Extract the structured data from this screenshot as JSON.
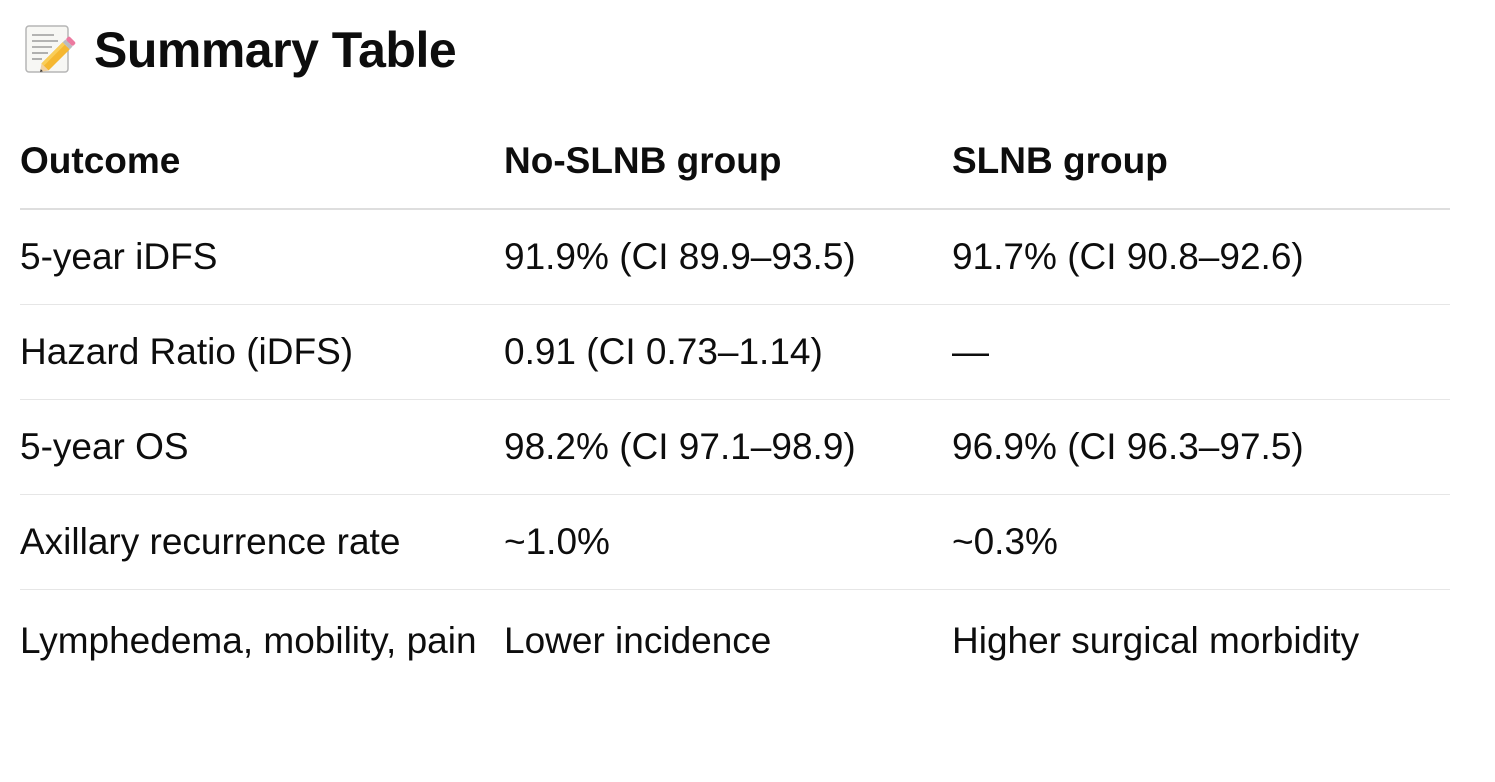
{
  "heading": {
    "icon": "memo-pencil-icon",
    "title": "Summary Table"
  },
  "table": {
    "headers": [
      "Outcome",
      "No-SLNB group",
      "SLNB group"
    ],
    "rows": [
      [
        "5-year iDFS",
        "91.9% (CI 89.9–93.5)",
        "91.7% (CI 90.8–92.6)"
      ],
      [
        "Hazard Ratio (iDFS)",
        "0.91 (CI 0.73–1.14)",
        "—"
      ],
      [
        "5-year OS",
        "98.2% (CI 97.1–98.9)",
        "96.9% (CI 96.3–97.5)"
      ],
      [
        "Axillary recurrence rate",
        "~1.0%",
        "~0.3%"
      ],
      [
        "Lymphedema, mobility, pain",
        "Lower incidence",
        "Higher surgical morbidity"
      ]
    ]
  },
  "colors": {
    "text": "#0d0d0d",
    "divider": "#e6e6e6"
  }
}
